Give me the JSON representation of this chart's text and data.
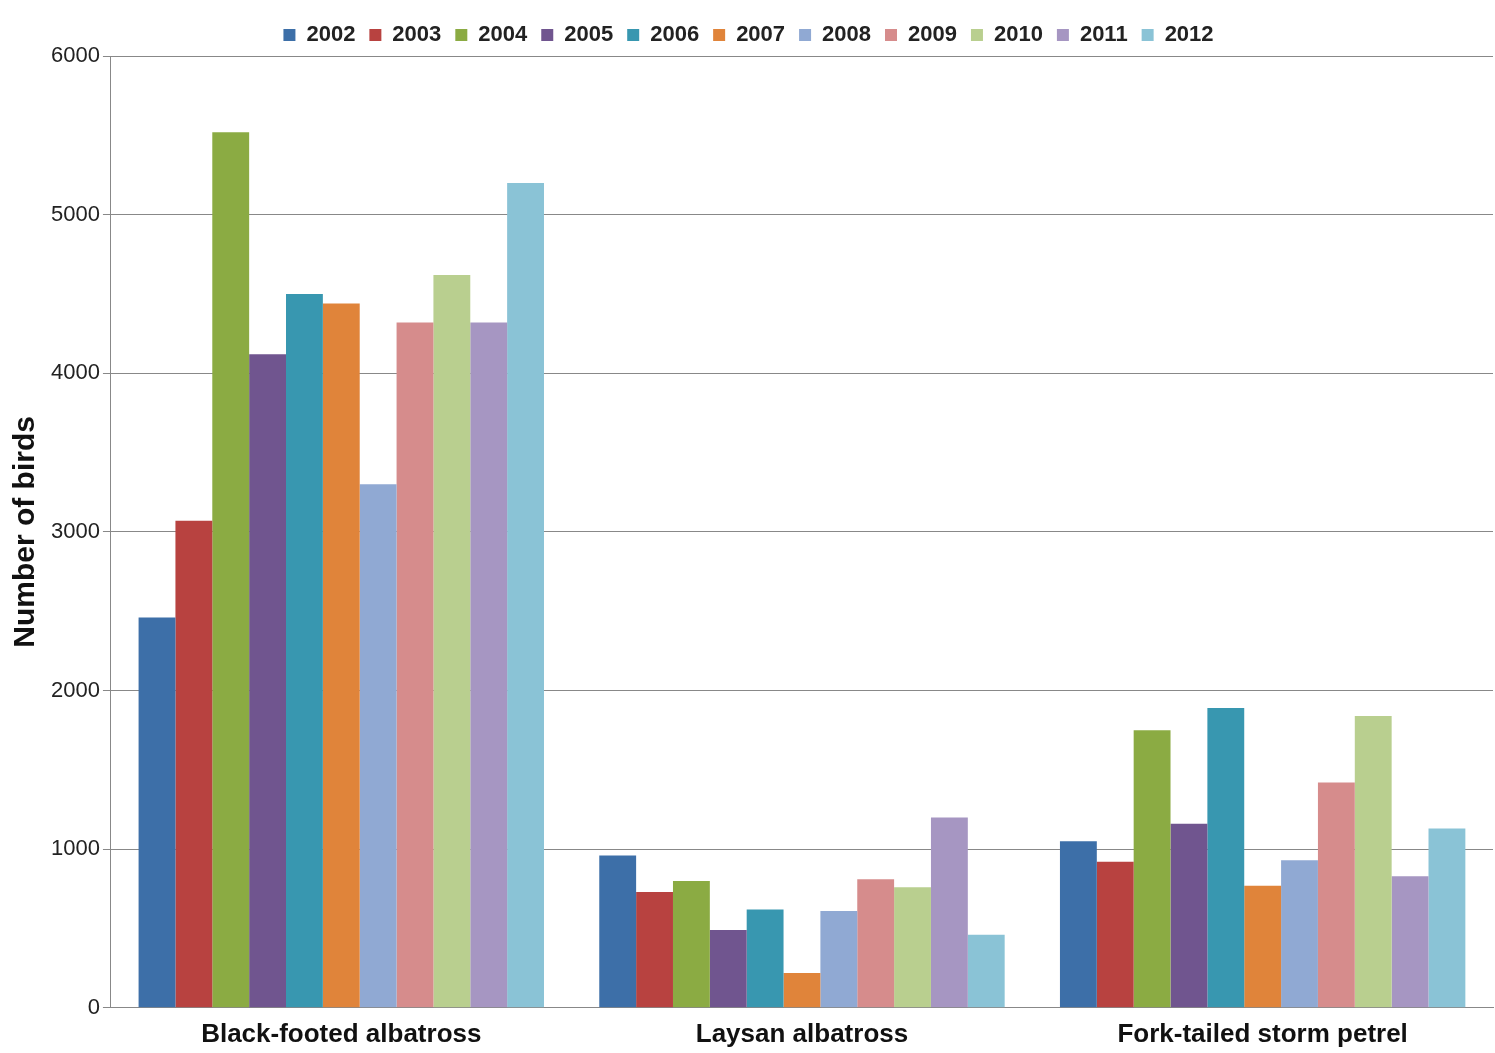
{
  "chart_data": {
    "type": "bar",
    "ylabel": "Number of birds",
    "categories": [
      "Black-footed albatross",
      "Laysan albatross",
      "Fork-tailed storm petrel"
    ],
    "series": [
      {
        "name": "2002",
        "color": "#3d6fa8",
        "values": [
          2460,
          960,
          1050
        ]
      },
      {
        "name": "2003",
        "color": "#b84240",
        "values": [
          3070,
          730,
          920
        ]
      },
      {
        "name": "2004",
        "color": "#8bab43",
        "values": [
          5520,
          800,
          1750
        ]
      },
      {
        "name": "2005",
        "color": "#70558f",
        "values": [
          4120,
          490,
          1160
        ]
      },
      {
        "name": "2006",
        "color": "#3897b0",
        "values": [
          4500,
          620,
          1890
        ]
      },
      {
        "name": "2007",
        "color": "#e0843a",
        "values": [
          4440,
          220,
          770
        ]
      },
      {
        "name": "2008",
        "color": "#90a9d3",
        "values": [
          3300,
          610,
          930
        ]
      },
      {
        "name": "2009",
        "color": "#d68c8c",
        "values": [
          4320,
          810,
          1420
        ]
      },
      {
        "name": "2010",
        "color": "#b9cf8f",
        "values": [
          4620,
          760,
          1840
        ]
      },
      {
        "name": "2011",
        "color": "#a696c2",
        "values": [
          4320,
          1200,
          830
        ]
      },
      {
        "name": "2012",
        "color": "#8ac3d6",
        "values": [
          5200,
          460,
          1130
        ]
      }
    ],
    "ylim": [
      0,
      6000
    ],
    "yticks": [
      0,
      1000,
      2000,
      3000,
      4000,
      5000,
      6000
    ],
    "grid": "y",
    "legend": "top"
  }
}
